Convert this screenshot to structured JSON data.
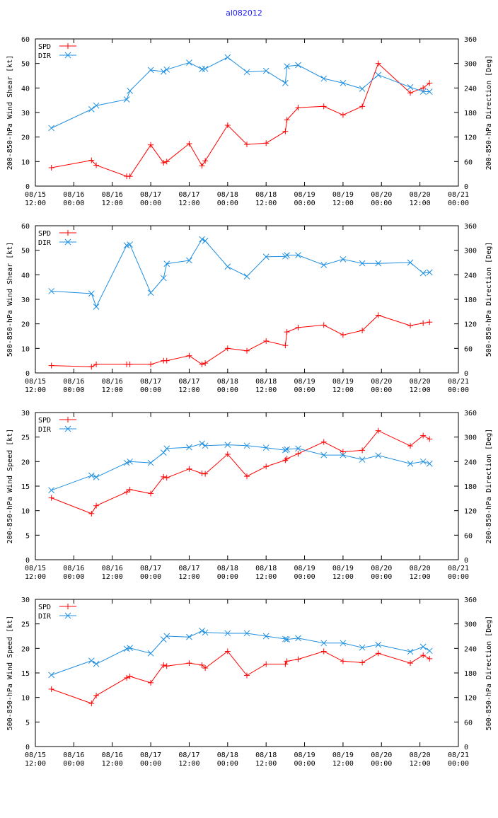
{
  "page_title": "al082012",
  "colors": {
    "spd": "#ff0000",
    "dir": "#1f8fe0",
    "axis": "#000000",
    "title": "#1a1aff"
  },
  "chart_data": [
    {
      "type": "line",
      "ylabel": "200-850-hPa Wind Shear [kt]",
      "y2label": "200-850-hPa Direction [Deg]",
      "ylim": [
        0,
        60
      ],
      "y2lim": [
        0,
        360
      ],
      "yticks": [
        "0",
        "10",
        "20",
        "30",
        "40",
        "50",
        "60"
      ],
      "y2ticks": [
        "0",
        "60",
        "120",
        "180",
        "240",
        "300",
        "360"
      ],
      "xlim": [
        0,
        132
      ],
      "xticks": [
        {
          "date": "08/15",
          "time": "12:00"
        },
        {
          "date": "08/16",
          "time": "00:00"
        },
        {
          "date": "08/16",
          "time": "12:00"
        },
        {
          "date": "08/17",
          "time": "00:00"
        },
        {
          "date": "08/17",
          "time": "12:00"
        },
        {
          "date": "08/18",
          "time": "00:00"
        },
        {
          "date": "08/18",
          "time": "12:00"
        },
        {
          "date": "08/19",
          "time": "00:00"
        },
        {
          "date": "08/19",
          "time": "12:00"
        },
        {
          "date": "08/20",
          "time": "00:00"
        },
        {
          "date": "08/20",
          "time": "12:00"
        },
        {
          "date": "08/21",
          "time": "00:00"
        }
      ],
      "series": [
        {
          "name": "SPD",
          "axis": "left",
          "marker": "plus",
          "x": [
            5,
            17.5,
            19,
            28.5,
            29.5,
            36,
            40,
            41,
            48,
            52,
            53,
            60,
            66,
            72,
            78,
            78.5,
            82,
            90,
            96,
            102,
            107,
            117,
            121,
            123
          ],
          "y": [
            7.5,
            10.5,
            8.5,
            4,
            4,
            16.8,
            9.5,
            10,
            17.3,
            8.3,
            10.3,
            24.8,
            17,
            17.5,
            22.3,
            27,
            32,
            32.5,
            29,
            32.5,
            50,
            38,
            40,
            42
          ]
        },
        {
          "name": "DIR",
          "axis": "right",
          "marker": "x",
          "x": [
            5,
            17.5,
            19,
            28.5,
            29.5,
            36,
            40,
            41,
            48,
            52,
            53,
            60,
            66,
            72,
            78,
            78.5,
            82,
            90,
            96,
            102,
            107,
            117,
            121,
            123
          ],
          "y": [
            142,
            188,
            197,
            212,
            233,
            284,
            280,
            285,
            302,
            286,
            287,
            315,
            279,
            282,
            252,
            293,
            296,
            263,
            252,
            238,
            272,
            242,
            231,
            231
          ]
        }
      ]
    },
    {
      "type": "line",
      "ylabel": "500-850-hPa Wind Shear [kt]",
      "y2label": "500-850-hPa Direction [Deg]",
      "ylim": [
        0,
        60
      ],
      "y2lim": [
        0,
        360
      ],
      "yticks": [
        "0",
        "10",
        "20",
        "30",
        "40",
        "50",
        "60"
      ],
      "y2ticks": [
        "0",
        "60",
        "120",
        "180",
        "240",
        "300",
        "360"
      ],
      "xlim": [
        0,
        132
      ],
      "xticks": [
        {
          "date": "08/15",
          "time": "12:00"
        },
        {
          "date": "08/16",
          "time": "00:00"
        },
        {
          "date": "08/16",
          "time": "12:00"
        },
        {
          "date": "08/17",
          "time": "00:00"
        },
        {
          "date": "08/17",
          "time": "12:00"
        },
        {
          "date": "08/18",
          "time": "00:00"
        },
        {
          "date": "08/18",
          "time": "12:00"
        },
        {
          "date": "08/19",
          "time": "00:00"
        },
        {
          "date": "08/19",
          "time": "12:00"
        },
        {
          "date": "08/20",
          "time": "00:00"
        },
        {
          "date": "08/20",
          "time": "12:00"
        },
        {
          "date": "08/21",
          "time": "00:00"
        }
      ],
      "series": [
        {
          "name": "SPD",
          "axis": "left",
          "marker": "plus",
          "x": [
            5,
            17.5,
            19,
            28.5,
            29.5,
            36,
            40,
            41,
            48,
            52,
            53,
            60,
            66,
            72,
            78,
            78.5,
            82,
            90,
            96,
            102,
            107,
            117,
            121,
            123
          ],
          "y": [
            3,
            2.5,
            3.5,
            3.5,
            3.5,
            3.5,
            5,
            5,
            7,
            3.5,
            4,
            10,
            9,
            13,
            11.2,
            16.7,
            18.5,
            19.5,
            15.5,
            17.3,
            23.5,
            19.3,
            20.3,
            20.7
          ]
        },
        {
          "name": "DIR",
          "axis": "right",
          "marker": "x",
          "x": [
            5,
            17.5,
            19,
            28.5,
            29.5,
            36,
            40,
            41,
            48,
            52,
            53,
            60,
            66,
            72,
            78,
            78.5,
            82,
            90,
            96,
            102,
            107,
            117,
            121,
            123
          ],
          "y": [
            200,
            194,
            162,
            312,
            314,
            196,
            232,
            267,
            275,
            327,
            323,
            260,
            236,
            284,
            285,
            288,
            288,
            264,
            278,
            268,
            268,
            270,
            244,
            246
          ]
        }
      ]
    },
    {
      "type": "line",
      "ylabel": "200-850-hPa Wind Speed [kt]",
      "y2label": "200-850-hPa Direction [Deg]",
      "ylim": [
        0,
        30
      ],
      "y2lim": [
        0,
        360
      ],
      "yticks": [
        "0",
        "5",
        "10",
        "15",
        "20",
        "25",
        "30"
      ],
      "y2ticks": [
        "0",
        "60",
        "120",
        "180",
        "240",
        "300",
        "360"
      ],
      "xlim": [
        0,
        132
      ],
      "xticks": [
        {
          "date": "08/15",
          "time": "12:00"
        },
        {
          "date": "08/16",
          "time": "00:00"
        },
        {
          "date": "08/16",
          "time": "12:00"
        },
        {
          "date": "08/17",
          "time": "00:00"
        },
        {
          "date": "08/17",
          "time": "12:00"
        },
        {
          "date": "08/18",
          "time": "00:00"
        },
        {
          "date": "08/18",
          "time": "12:00"
        },
        {
          "date": "08/19",
          "time": "00:00"
        },
        {
          "date": "08/19",
          "time": "12:00"
        },
        {
          "date": "08/20",
          "time": "00:00"
        },
        {
          "date": "08/20",
          "time": "12:00"
        },
        {
          "date": "08/21",
          "time": "00:00"
        }
      ],
      "series": [
        {
          "name": "SPD",
          "axis": "left",
          "marker": "plus",
          "x": [
            5,
            17.5,
            19,
            28.5,
            29.5,
            36,
            40,
            41,
            48,
            52,
            53,
            60,
            66,
            72,
            78,
            78.5,
            82,
            90,
            96,
            102,
            107,
            117,
            121,
            123
          ],
          "y": [
            12.6,
            9.4,
            11,
            13.8,
            14.3,
            13.5,
            16.9,
            16.7,
            18.5,
            17.6,
            17.5,
            21.5,
            17,
            19,
            20.3,
            20.6,
            21.6,
            24,
            22,
            22.3,
            26.3,
            23.2,
            25.3,
            24.6
          ]
        },
        {
          "name": "DIR",
          "axis": "right",
          "marker": "x",
          "x": [
            5,
            17.5,
            19,
            28.5,
            29.5,
            36,
            40,
            41,
            48,
            52,
            53,
            60,
            66,
            72,
            78,
            78.5,
            82,
            90,
            96,
            102,
            107,
            117,
            121,
            123
          ],
          "y": [
            170,
            206,
            202,
            237,
            240,
            237,
            262,
            272,
            275,
            284,
            279,
            281,
            279,
            274,
            268,
            270,
            272,
            256,
            256,
            245,
            255,
            235,
            240,
            235
          ]
        }
      ]
    },
    {
      "type": "line",
      "ylabel": "500-850-hPa Wind Speed [kt]",
      "y2label": "500-850-hPa Direction [Deg]",
      "ylim": [
        0,
        30
      ],
      "y2lim": [
        0,
        360
      ],
      "yticks": [
        "0",
        "5",
        "10",
        "15",
        "20",
        "25",
        "30"
      ],
      "y2ticks": [
        "0",
        "60",
        "120",
        "180",
        "240",
        "300",
        "360"
      ],
      "xlim": [
        0,
        132
      ],
      "xticks": [
        {
          "date": "08/15",
          "time": "12:00"
        },
        {
          "date": "08/16",
          "time": "00:00"
        },
        {
          "date": "08/16",
          "time": "12:00"
        },
        {
          "date": "08/17",
          "time": "00:00"
        },
        {
          "date": "08/17",
          "time": "12:00"
        },
        {
          "date": "08/18",
          "time": "00:00"
        },
        {
          "date": "08/18",
          "time": "12:00"
        },
        {
          "date": "08/19",
          "time": "00:00"
        },
        {
          "date": "08/19",
          "time": "12:00"
        },
        {
          "date": "08/20",
          "time": "00:00"
        },
        {
          "date": "08/20",
          "time": "12:00"
        },
        {
          "date": "08/21",
          "time": "00:00"
        }
      ],
      "series": [
        {
          "name": "SPD",
          "axis": "left",
          "marker": "plus",
          "x": [
            5,
            17.5,
            19,
            28.5,
            29.5,
            36,
            40,
            41,
            48,
            52,
            53,
            60,
            66,
            72,
            78,
            78.5,
            82,
            90,
            96,
            102,
            107,
            117,
            121,
            123
          ],
          "y": [
            11.7,
            8.8,
            10.4,
            14,
            14.3,
            13,
            16.6,
            16.4,
            17,
            16.6,
            16,
            19.4,
            14.5,
            16.8,
            16.8,
            17.4,
            17.8,
            19.4,
            17.4,
            17.1,
            19,
            17,
            18.6,
            17.9
          ]
        },
        {
          "name": "DIR",
          "axis": "right",
          "marker": "x",
          "x": [
            5,
            17.5,
            19,
            28.5,
            29.5,
            36,
            40,
            41,
            48,
            52,
            53,
            60,
            66,
            72,
            78,
            78.5,
            82,
            90,
            96,
            102,
            107,
            117,
            121,
            123
          ],
          "y": [
            175,
            210,
            202,
            239,
            241,
            228,
            262,
            270,
            268,
            283,
            279,
            277,
            277,
            270,
            263,
            262,
            265,
            253,
            253,
            242,
            249,
            232,
            244,
            234
          ]
        }
      ]
    }
  ]
}
